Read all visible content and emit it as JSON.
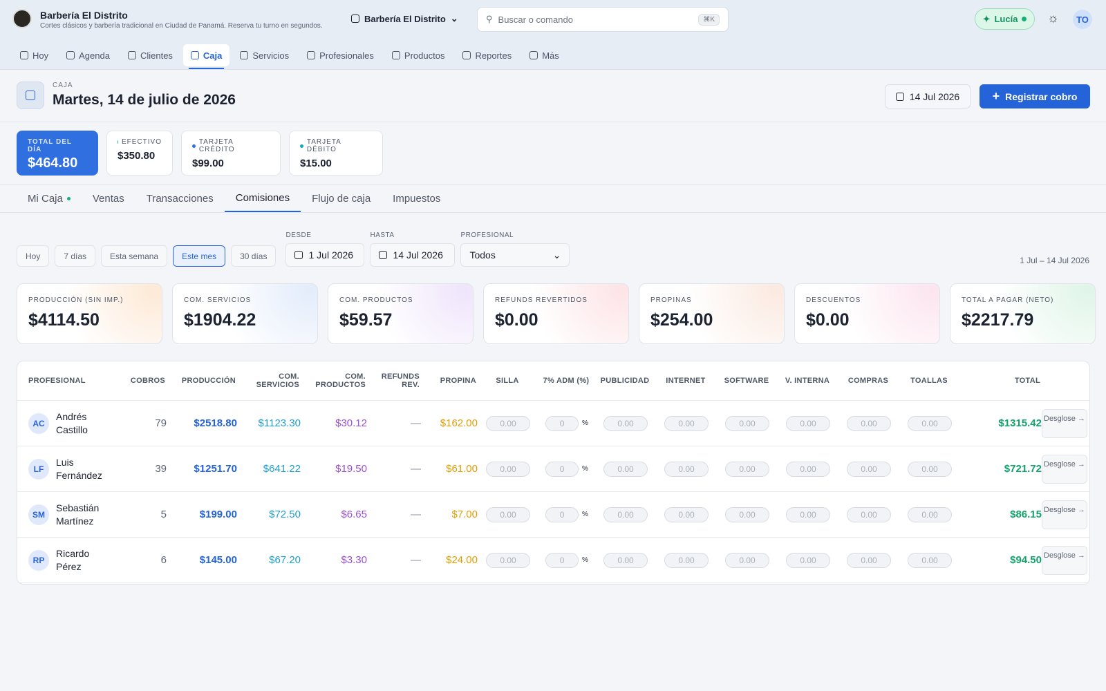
{
  "header": {
    "brand_name": "Barbería El Distrito",
    "brand_tagline": "Cortes clásicos y barbería tradicional en Ciudad de Panamá. Reserva tu turno en segundos.",
    "location": "Barbería El Distrito",
    "search_placeholder": "Buscar o comando",
    "search_shortcut": "⌘K",
    "assistant": "Lucía",
    "avatar": "TO"
  },
  "nav": {
    "items": [
      "Hoy",
      "Agenda",
      "Clientes",
      "Caja",
      "Servicios",
      "Profesionales",
      "Productos",
      "Reportes",
      "Más"
    ],
    "active": "Caja"
  },
  "page": {
    "eyebrow": "CAJA",
    "title": "Martes, 14 de julio de 2026",
    "date_button": "14 Jul 2026",
    "primary_action": "Registrar cobro"
  },
  "summary": [
    {
      "label": "TOTAL DEL DÍA",
      "value": "$464.80"
    },
    {
      "label": "EFECTIVO",
      "value": "$350.80",
      "dot": "#16b07a"
    },
    {
      "label": "TARJETA CRÉDITO",
      "value": "$99.00",
      "dot": "#2f6fe0"
    },
    {
      "label": "TARJETA DÉBITO",
      "value": "$15.00",
      "dot": "#14a9c7"
    }
  ],
  "tabs": {
    "items": [
      "Mi Caja",
      "Ventas",
      "Transacciones",
      "Comisiones",
      "Flujo de caja",
      "Impuestos"
    ],
    "active": "Comisiones"
  },
  "filters": {
    "presets": [
      "Hoy",
      "7 días",
      "Esta semana",
      "Este mes",
      "30 días"
    ],
    "active_preset": "Este mes",
    "from_label": "DESDE",
    "from": "1 Jul 2026",
    "to_label": "HASTA",
    "to": "14 Jul 2026",
    "professional_label": "PROFESIONAL",
    "professional": "Todos",
    "range": "1 Jul – 14 Jul 2026"
  },
  "kpis": [
    {
      "label": "PRODUCCIÓN (SIN IMP.)",
      "value": "$4114.50"
    },
    {
      "label": "COM. SERVICIOS",
      "value": "$1904.22"
    },
    {
      "label": "COM. PRODUCTOS",
      "value": "$59.57"
    },
    {
      "label": "REFUNDS REVERTIDOS",
      "value": "$0.00"
    },
    {
      "label": "PROPINAS",
      "value": "$254.00"
    },
    {
      "label": "DESCUENTOS",
      "value": "$0.00"
    },
    {
      "label": "TOTAL A PAGAR (NETO)",
      "value": "$2217.79"
    }
  ],
  "table": {
    "headers": [
      "PROFESIONAL",
      "COBROS",
      "PRODUCCIÓN",
      "COM. SERVICIOS",
      "COM. PRODUCTOS",
      "REFUNDS REV.",
      "PROPINA",
      "SILLA",
      "7% ADM (%)",
      "PUBLICIDAD",
      "INTERNET",
      "SOFTWARE",
      "V. INTERNA",
      "COMPRAS",
      "TOALLAS",
      "TOTAL"
    ],
    "amount_placeholder": "0.00",
    "percent_placeholder": "0",
    "percent_sign": "%",
    "action": "Desglose →",
    "rows": [
      {
        "initials": "AC",
        "name": "Andrés Castillo",
        "cobros": "79",
        "produccion": "$2518.80",
        "com_servicios": "$1123.30",
        "com_productos": "$30.12",
        "refunds": "—",
        "propina": "$162.00",
        "total": "$1315.42"
      },
      {
        "initials": "LF",
        "name": "Luis Fernández",
        "cobros": "39",
        "produccion": "$1251.70",
        "com_servicios": "$641.22",
        "com_productos": "$19.50",
        "refunds": "—",
        "propina": "$61.00",
        "total": "$721.72"
      },
      {
        "initials": "SM",
        "name": "Sebastián Martínez",
        "cobros": "5",
        "produccion": "$199.00",
        "com_servicios": "$72.50",
        "com_productos": "$6.65",
        "refunds": "—",
        "propina": "$7.00",
        "total": "$86.15"
      },
      {
        "initials": "RP",
        "name": "Ricardo Pérez",
        "cobros": "6",
        "produccion": "$145.00",
        "com_servicios": "$67.20",
        "com_productos": "$3.30",
        "refunds": "—",
        "propina": "$24.00",
        "total": "$94.50"
      }
    ]
  }
}
